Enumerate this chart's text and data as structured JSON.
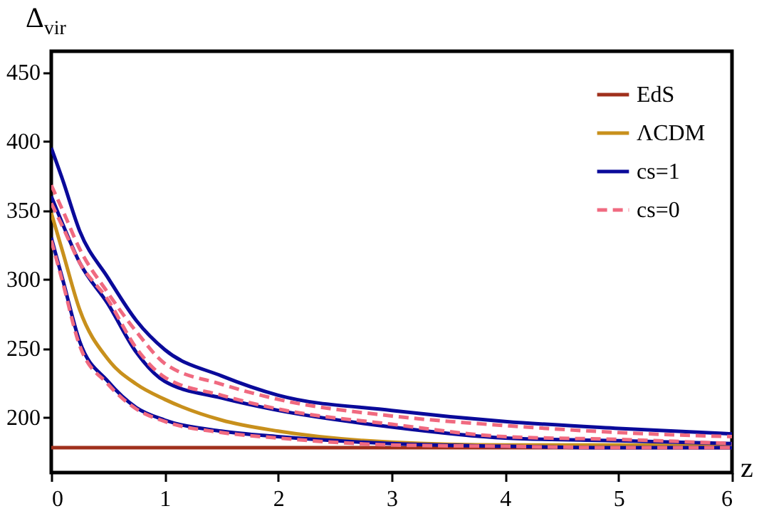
{
  "chart_data": {
    "type": "line",
    "xlabel": "z",
    "ylabel": "Δ$_{vir}$",
    "xlim": [
      0,
      6
    ],
    "ylim": [
      160,
      465
    ],
    "xticks": [
      0,
      1,
      2,
      3,
      4,
      5,
      6
    ],
    "yticks": [
      200,
      250,
      300,
      350,
      400,
      450
    ],
    "grid": false,
    "legend": "top right",
    "marker": "none",
    "series": [
      {
        "name": "EdS",
        "color": "#a0301c",
        "line_style": "solid",
        "x": [
          0,
          6
        ],
        "values": [
          178,
          178
        ]
      },
      {
        "name": "ΛCDM",
        "color": "#c8901c",
        "line_style": "solid",
        "x": [
          0,
          0.1,
          0.25,
          0.5,
          0.75,
          1,
          1.5,
          2,
          3,
          4,
          5,
          6
        ],
        "values": [
          348,
          320,
          278,
          242,
          224,
          213,
          198,
          190,
          182,
          180,
          180,
          179
        ]
      },
      {
        "name": "cs=1",
        "color": "#0a0a9a",
        "line_style": "solid",
        "x": [
          0,
          0.1,
          0.25,
          0.5,
          0.75,
          1,
          1.5,
          2,
          3,
          4,
          5,
          6
        ],
        "values": [
          395,
          372,
          335,
          301,
          270,
          249,
          230,
          216,
          205,
          197,
          192,
          188
        ]
      },
      {
        "color": "#0a0a9a",
        "line_style": "solid",
        "x": [
          0,
          0.1,
          0.25,
          0.5,
          0.75,
          1,
          1.5,
          2,
          3,
          4,
          5,
          6
        ],
        "values": [
          360,
          340,
          312,
          282,
          247,
          226,
          214,
          205,
          193,
          185,
          183,
          181
        ]
      },
      {
        "color": "#0a0a9a",
        "line_style": "solid",
        "x": [
          0,
          0.1,
          0.25,
          0.5,
          0.75,
          1,
          1.5,
          2,
          3,
          4,
          5,
          6
        ],
        "values": [
          330,
          300,
          255,
          226,
          207,
          198,
          190,
          186,
          181,
          179,
          178,
          178
        ]
      },
      {
        "name": "cs=0",
        "color": "#f06a80",
        "line_style": "dashed",
        "x": [
          0,
          0.1,
          0.25,
          0.5,
          0.75,
          1,
          1.5,
          2,
          3,
          4,
          5,
          6
        ],
        "values": [
          368,
          350,
          322,
          290,
          262,
          239,
          224,
          213,
          201,
          194,
          189,
          186
        ]
      },
      {
        "color": "#f06a80",
        "line_style": "dashed",
        "x": [
          0,
          0.1,
          0.25,
          0.5,
          0.75,
          1,
          1.5,
          2,
          3,
          4,
          5,
          6
        ],
        "values": [
          355,
          338,
          312,
          285,
          250,
          229,
          216,
          206,
          195,
          186,
          184,
          181
        ]
      },
      {
        "color": "#f06a80",
        "line_style": "dashed",
        "x": [
          0,
          0.1,
          0.25,
          0.5,
          0.75,
          1,
          1.5,
          2,
          3,
          4,
          5,
          6
        ],
        "values": [
          328,
          298,
          252,
          224,
          206,
          197,
          189,
          185,
          180,
          179,
          178,
          178
        ]
      }
    ]
  }
}
